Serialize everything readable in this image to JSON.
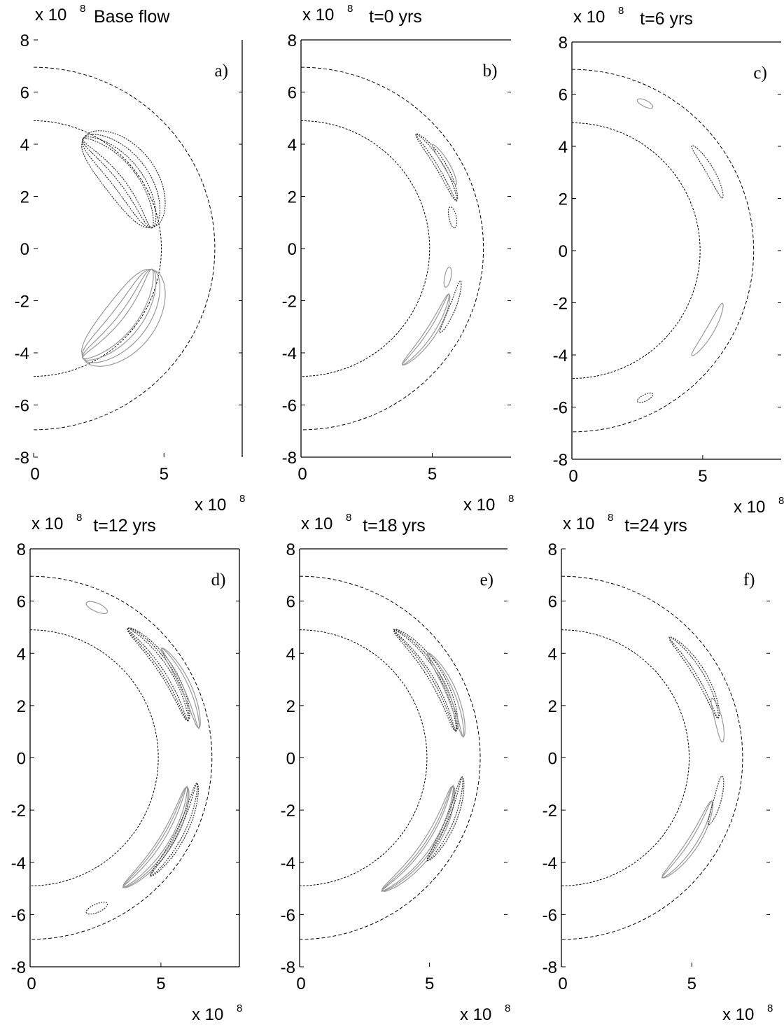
{
  "figure": {
    "axis_scale_text": "x 10",
    "axis_scale_exponent": "8"
  },
  "chart_data": [
    {
      "type": "contour",
      "panel_label": "a)",
      "title": "Base flow",
      "xlim": [
        0,
        8
      ],
      "ylim": [
        -8,
        8
      ],
      "xticks": [
        "0",
        "5"
      ],
      "yticks": [
        "8",
        "6",
        "4",
        "2",
        "0",
        "-2",
        "-4",
        "-6",
        "-8"
      ],
      "boundaries": {
        "inner_radius": 4.9,
        "outer_radius": 6.95
      },
      "features": [
        {
          "sign": "negative",
          "color": "#333333",
          "center": [
            4.5,
            3.5
          ],
          "radius": 4.6,
          "half_span_deg": 28,
          "thickness": [
            1.0,
            0.7,
            0.45,
            0.25
          ]
        },
        {
          "sign": "positive",
          "color": "#999999",
          "center": [
            4.5,
            -3.5
          ],
          "radius": 4.6,
          "half_span_deg": 28,
          "thickness": [
            1.0,
            0.7,
            0.45,
            0.25
          ]
        }
      ]
    },
    {
      "type": "contour",
      "panel_label": "b)",
      "title": "t=0 yrs",
      "xlim": [
        0,
        8
      ],
      "ylim": [
        -8,
        8
      ],
      "xticks": [
        "0",
        "5"
      ],
      "yticks": [
        "8",
        "6",
        "4",
        "2",
        "0",
        "-2",
        "-4",
        "-6",
        "-8"
      ],
      "boundaries": {
        "inner_radius": 4.9,
        "outer_radius": 6.95
      },
      "features": [
        {
          "sign": "negative",
          "color": "#333333",
          "center": [
            5.3,
            3.2
          ],
          "radius": 6.2,
          "half_span_deg": 14,
          "thickness": [
            0.2,
            0.1
          ]
        },
        {
          "sign": "positive",
          "color": "#999999",
          "center": [
            5.6,
            3.3
          ],
          "radius": 6.4,
          "half_span_deg": 8,
          "thickness": [
            0.12
          ]
        },
        {
          "sign": "negative",
          "color": "#333333",
          "center": [
            5.8,
            1.2
          ],
          "radius": 5.9,
          "half_span_deg": 4,
          "thickness": [
            0.14
          ]
        },
        {
          "sign": "positive",
          "color": "#999999",
          "center": [
            4.9,
            -3.2
          ],
          "radius": 5.9,
          "half_span_deg": 16,
          "thickness": [
            0.2,
            0.1
          ]
        },
        {
          "sign": "negative",
          "color": "#333333",
          "center": [
            5.6,
            -2.2
          ],
          "radius": 6.2,
          "half_span_deg": 10,
          "thickness": [
            0.12
          ]
        },
        {
          "sign": "positive",
          "color": "#999999",
          "center": [
            5.6,
            -1.1
          ],
          "radius": 5.7,
          "half_span_deg": 4,
          "thickness": [
            0.12
          ]
        }
      ]
    },
    {
      "type": "contour",
      "panel_label": "c)",
      "title": "t=6 yrs",
      "xlim": [
        0,
        8
      ],
      "ylim": [
        -8,
        8
      ],
      "xticks": [
        "0",
        "5"
      ],
      "yticks": [
        "8",
        "6",
        "4",
        "2",
        "0",
        "-2",
        "-4",
        "-6",
        "-8"
      ],
      "boundaries": {
        "inner_radius": 4.9,
        "outer_radius": 6.95
      },
      "features": [
        {
          "sign": "positive",
          "color": "#999999",
          "center": [
            2.8,
            5.65
          ],
          "radius": 6.3,
          "half_span_deg": 3,
          "thickness": [
            0.12
          ]
        },
        {
          "sign": "negative",
          "color": "#333333",
          "center": [
            5.3,
            3.1
          ],
          "radius": 6.1,
          "half_span_deg": 11,
          "thickness": [
            0.15
          ]
        },
        {
          "sign": "positive",
          "color": "#999999",
          "center": [
            5.3,
            -3.1
          ],
          "radius": 6.1,
          "half_span_deg": 11,
          "thickness": [
            0.15
          ]
        },
        {
          "sign": "negative",
          "color": "#333333",
          "center": [
            2.8,
            -5.65
          ],
          "radius": 6.3,
          "half_span_deg": 3,
          "thickness": [
            0.12
          ]
        }
      ]
    },
    {
      "type": "contour",
      "panel_label": "d)",
      "title": "t=12 yrs",
      "xlim": [
        0,
        8
      ],
      "ylim": [
        -8,
        8
      ],
      "xticks": [
        "0",
        "5"
      ],
      "yticks": [
        "8",
        "6",
        "4",
        "2",
        "0",
        "-2",
        "-4",
        "-6",
        "-8"
      ],
      "boundaries": {
        "inner_radius": 4.9,
        "outer_radius": 6.95
      },
      "features": [
        {
          "sign": "positive",
          "color": "#999999",
          "center": [
            2.55,
            5.75
          ],
          "radius": 6.3,
          "half_span_deg": 4,
          "thickness": [
            0.16
          ]
        },
        {
          "sign": "negative",
          "color": "#333333",
          "center": [
            5.2,
            3.4
          ],
          "radius": 6.2,
          "half_span_deg": 20,
          "thickness": [
            0.28,
            0.2,
            0.1
          ]
        },
        {
          "sign": "positive",
          "color": "#999999",
          "center": [
            5.6,
            2.6
          ],
          "radius": 6.55,
          "half_span_deg": 15,
          "thickness": [
            0.2,
            0.1
          ]
        },
        {
          "sign": "positive",
          "color": "#999999",
          "center": [
            5.2,
            -3.3
          ],
          "radius": 6.1,
          "half_span_deg": 22,
          "thickness": [
            0.28,
            0.2,
            0.1
          ]
        },
        {
          "sign": "negative",
          "color": "#333333",
          "center": [
            5.4,
            -2.7
          ],
          "radius": 6.45,
          "half_span_deg": 18,
          "thickness": [
            0.2,
            0.1
          ]
        },
        {
          "sign": "negative",
          "color": "#333333",
          "center": [
            2.55,
            -5.75
          ],
          "radius": 6.3,
          "half_span_deg": 4,
          "thickness": [
            0.16
          ]
        }
      ]
    },
    {
      "type": "contour",
      "panel_label": "e)",
      "title": "t=18 yrs",
      "xlim": [
        0,
        8
      ],
      "ylim": [
        -8,
        8
      ],
      "xticks": [
        "0",
        "5"
      ],
      "yticks": [
        "8",
        "6",
        "4",
        "2",
        "0",
        "-2",
        "-4",
        "-6",
        "-8"
      ],
      "boundaries": {
        "inner_radius": 4.9,
        "outer_radius": 6.95
      },
      "features": [
        {
          "sign": "negative",
          "color": "#333333",
          "center": [
            5.2,
            3.2
          ],
          "radius": 6.1,
          "half_span_deg": 22,
          "thickness": [
            0.28,
            0.18,
            0.1
          ]
        },
        {
          "sign": "positive",
          "color": "#999999",
          "center": [
            5.6,
            2.4
          ],
          "radius": 6.35,
          "half_span_deg": 16,
          "thickness": [
            0.2,
            0.1
          ]
        },
        {
          "sign": "positive",
          "color": "#999999",
          "center": [
            5.0,
            -3.4
          ],
          "radius": 6.0,
          "half_span_deg": 24,
          "thickness": [
            0.28,
            0.18,
            0.1
          ]
        },
        {
          "sign": "negative",
          "color": "#333333",
          "center": [
            5.5,
            -2.3
          ],
          "radius": 6.3,
          "half_span_deg": 16,
          "thickness": [
            0.2,
            0.1
          ]
        }
      ]
    },
    {
      "type": "contour",
      "panel_label": "f)",
      "title": "t=24 yrs",
      "xlim": [
        0,
        8
      ],
      "ylim": [
        -8,
        8
      ],
      "xticks": [
        "0",
        "5"
      ],
      "yticks": [
        "8",
        "6",
        "4",
        "2",
        "0",
        "-2",
        "-4",
        "-6",
        "-8"
      ],
      "boundaries": {
        "inner_radius": 4.9,
        "outer_radius": 6.95
      },
      "features": [
        {
          "sign": "negative",
          "color": "#333333",
          "center": [
            5.3,
            3.2
          ],
          "radius": 6.2,
          "half_span_deg": 17,
          "thickness": [
            0.22,
            0.12
          ]
        },
        {
          "sign": "positive",
          "color": "#999999",
          "center": [
            5.8,
            1.4
          ],
          "radius": 6.2,
          "half_span_deg": 8,
          "thickness": [
            0.14
          ]
        },
        {
          "sign": "positive",
          "color": "#999999",
          "center": [
            5.1,
            -3.3
          ],
          "radius": 6.0,
          "half_span_deg": 17,
          "thickness": [
            0.22,
            0.12
          ]
        },
        {
          "sign": "negative",
          "color": "#333333",
          "center": [
            5.8,
            -1.6
          ],
          "radius": 6.2,
          "half_span_deg": 9,
          "thickness": [
            0.14
          ]
        }
      ]
    }
  ]
}
